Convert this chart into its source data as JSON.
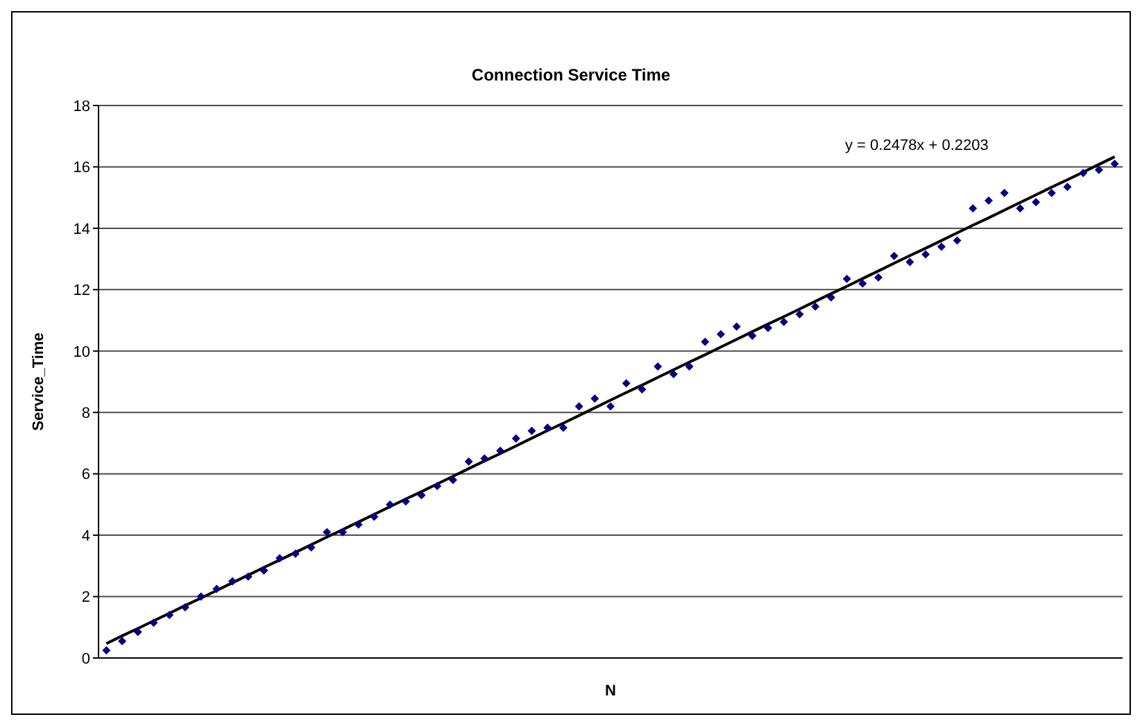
{
  "chart_data": {
    "type": "scatter",
    "title": "Connection Service Time",
    "xlabel": "N",
    "ylabel": "Service_Time",
    "categories": [
      null,
      null,
      null,
      null,
      null,
      null,
      null,
      null,
      null,
      null,
      null,
      null,
      null,
      null,
      null,
      null,
      null,
      null,
      null,
      null,
      null,
      null,
      null,
      null,
      null,
      null,
      null,
      null,
      null,
      null,
      null,
      null,
      null,
      null,
      null,
      null,
      null,
      null,
      null,
      null,
      null,
      null,
      null,
      null,
      null,
      null,
      null,
      null,
      null,
      null,
      null,
      null,
      null,
      null,
      null,
      null,
      null,
      null,
      null,
      null,
      null,
      null,
      null,
      null,
      null
    ],
    "series": [
      {
        "type": "scatter",
        "color": "#000080",
        "values": [
          0.25,
          0.55,
          0.85,
          1.15,
          1.4,
          1.65,
          2.0,
          2.25,
          2.5,
          2.65,
          2.85,
          3.25,
          3.4,
          3.6,
          4.1,
          4.1,
          4.35,
          4.6,
          5.0,
          5.1,
          5.3,
          5.6,
          5.8,
          6.4,
          6.5,
          6.75,
          7.15,
          7.4,
          7.5,
          7.5,
          8.2,
          8.45,
          8.2,
          8.95,
          8.75,
          9.5,
          9.25,
          9.5,
          10.3,
          10.55,
          10.8,
          10.5,
          10.75,
          10.95,
          11.2,
          11.45,
          11.75,
          12.35,
          12.2,
          12.4,
          13.1,
          12.9,
          13.15,
          13.4,
          13.6,
          14.65,
          14.9,
          15.15,
          14.65,
          14.85,
          15.15,
          15.35,
          15.8,
          15.9,
          16.1
        ]
      },
      {
        "type": "line",
        "color": "#000000",
        "marker": "none",
        "values": [
          0.47,
          0.72,
          0.96,
          1.21,
          1.46,
          1.71,
          1.95,
          2.2,
          2.45,
          2.7,
          2.95,
          3.19,
          3.44,
          3.69,
          3.94,
          4.18,
          4.43,
          4.68,
          4.93,
          5.18,
          5.42,
          5.67,
          5.92,
          6.17,
          6.42,
          6.66,
          6.91,
          7.16,
          7.41,
          7.65,
          7.9,
          8.15,
          8.4,
          8.65,
          8.89,
          9.14,
          9.39,
          9.64,
          9.88,
          10.13,
          10.38,
          10.63,
          10.88,
          11.12,
          11.37,
          11.62,
          11.87,
          12.11,
          12.36,
          12.61,
          12.86,
          13.11,
          13.35,
          13.6,
          13.85,
          14.1,
          14.34,
          14.59,
          14.84,
          15.09,
          15.34,
          15.58,
          15.83,
          16.08,
          16.33
        ]
      }
    ],
    "annotations": [
      "y = 0.2478x + 0.2203"
    ],
    "ylim": [
      0,
      18
    ],
    "yticks": [
      0,
      2,
      4,
      6,
      8,
      10,
      12,
      14,
      16,
      18
    ],
    "grid": "y",
    "marker": "diamond",
    "tick_labels": "y"
  }
}
